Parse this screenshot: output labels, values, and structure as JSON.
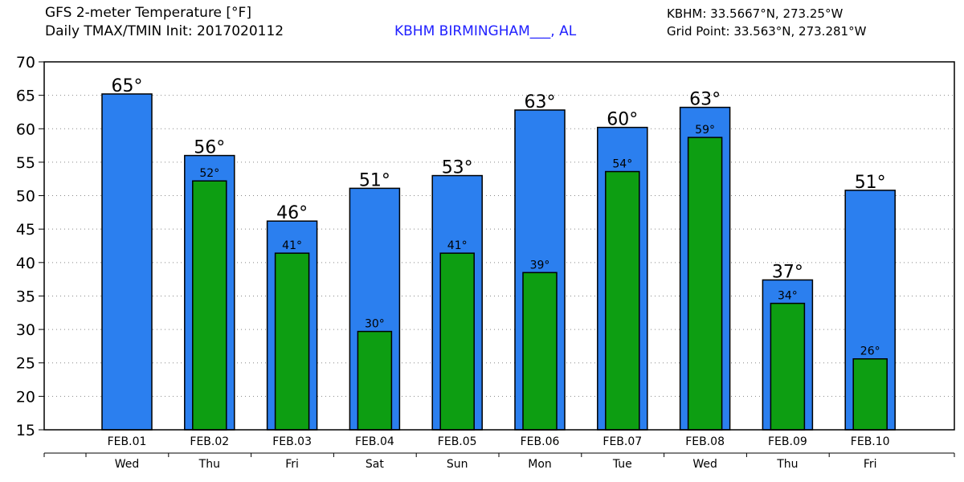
{
  "header": {
    "title_line1": "GFS 2-meter Temperature [°F]",
    "title_line2": "Daily TMAX/TMIN Init: 2017020112",
    "station": "KBHM BIRMINGHAM___, AL",
    "coord_line1": "KBHM: 33.5667°N, 273.25°W",
    "coord_line2": "Grid Point: 33.563°N, 273.281°W"
  },
  "colors": {
    "tmax": "#2b7fef",
    "tmin": "#0d9e12",
    "station_text": "#2020ff",
    "grid": "#888888"
  },
  "chart_data": {
    "type": "bar",
    "title": "GFS 2-meter Temperature [°F]",
    "subtitle": "Daily TMAX/TMIN Init: 2017020112",
    "categories": [
      "FEB.01",
      "FEB.02",
      "FEB.03",
      "FEB.04",
      "FEB.05",
      "FEB.06",
      "FEB.07",
      "FEB.08",
      "FEB.09",
      "FEB.10"
    ],
    "days": [
      "Wed",
      "Thu",
      "Fri",
      "Sat",
      "Sun",
      "Mon",
      "Tue",
      "Wed",
      "Thu",
      "Fri"
    ],
    "series": [
      {
        "values": [
          65.2,
          56.0,
          46.2,
          51.1,
          53.0,
          62.8,
          60.2,
          63.2,
          37.4,
          50.8
        ],
        "labels": [
          "65°",
          "56°",
          "46°",
          "51°",
          "53°",
          "63°",
          "60°",
          "63°",
          "37°",
          "51°"
        ]
      },
      {
        "values": [
          null,
          52.2,
          41.4,
          29.7,
          41.4,
          38.5,
          53.6,
          58.7,
          33.9,
          25.6
        ],
        "labels": [
          "",
          "52°",
          "41°",
          "30°",
          "41°",
          "39°",
          "54°",
          "59°",
          "34°",
          "26°"
        ]
      }
    ],
    "ylim": [
      15,
      70
    ],
    "yticks": [
      15,
      20,
      25,
      30,
      35,
      40,
      45,
      50,
      55,
      60,
      65,
      70
    ],
    "grid": true,
    "xlabel": "",
    "ylabel": ""
  }
}
